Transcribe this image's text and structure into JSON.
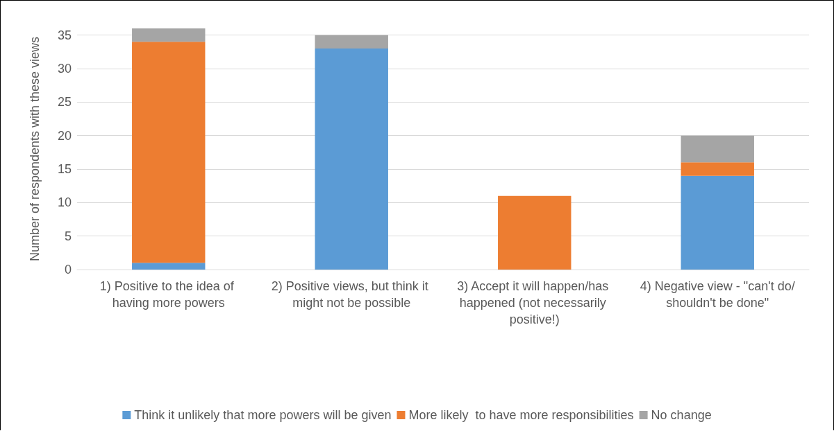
{
  "chart_data": {
    "type": "bar",
    "stacked": true,
    "ylabel": "Number of respondents with these views",
    "categories": [
      "1) Positive to the idea of having more powers",
      "2) Positive views, but think it might not be possible",
      "3) Accept it will happen/has happened (not necessarily positive!)",
      "4) Negative view - \"can't do/shouldn't be done\""
    ],
    "series": [
      {
        "name": "Think it unlikely that more powers will be given",
        "color": "#5b9bd5",
        "values": [
          1,
          33,
          0,
          14
        ]
      },
      {
        "name": "More likely  to have more responsibilities",
        "color": "#ed7d31",
        "values": [
          33,
          0,
          11,
          2
        ]
      },
      {
        "name": "No change",
        "color": "#a5a5a5",
        "values": [
          2,
          2,
          0,
          4
        ]
      }
    ],
    "ylim": [
      0,
      36
    ],
    "yticks": [
      0,
      5,
      10,
      15,
      20,
      25,
      30,
      35
    ],
    "grid": "y",
    "legend": "bottom"
  }
}
